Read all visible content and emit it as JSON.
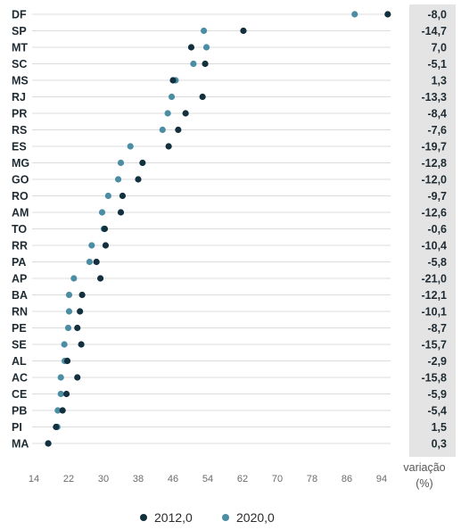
{
  "chart_data": {
    "type": "scatter",
    "style": "dot-plot",
    "categories": [
      "DF",
      "SP",
      "MT",
      "SC",
      "MS",
      "RJ",
      "PR",
      "RS",
      "ES",
      "MG",
      "GO",
      "RO",
      "AM",
      "TO",
      "RR",
      "PA",
      "AP",
      "BA",
      "RN",
      "PE",
      "SE",
      "AL",
      "AC",
      "CE",
      "PB",
      "PI",
      "MA"
    ],
    "series": [
      {
        "name": "2012,0",
        "color": "#12303d",
        "values": [
          95.4,
          62.2,
          50.2,
          53.4,
          46.0,
          52.8,
          48.9,
          47.2,
          45.0,
          39.0,
          38.0,
          34.4,
          34.0,
          30.3,
          30.5,
          28.4,
          29.3,
          25.1,
          24.6,
          24.0,
          24.9,
          21.7,
          24.0,
          21.5,
          20.6,
          19.1,
          17.3
        ]
      },
      {
        "name": "2020,0",
        "color": "#4b8ea4",
        "values": [
          87.8,
          53.1,
          53.7,
          50.7,
          46.6,
          45.7,
          44.8,
          43.6,
          36.2,
          34.0,
          33.4,
          31.1,
          29.7,
          30.1,
          27.3,
          26.8,
          23.2,
          22.1,
          22.1,
          21.9,
          21.0,
          21.1,
          20.2,
          20.2,
          19.5,
          19.4,
          17.3
        ]
      }
    ],
    "variation_values": [
      "-8,0",
      "-14,7",
      "7,0",
      "-5,1",
      "1,3",
      "-13,3",
      "-8,4",
      "-7,6",
      "-19,7",
      "-12,8",
      "-12,0",
      "-9,7",
      "-12,6",
      "-0,6",
      "-10,4",
      "-5,8",
      "-21,0",
      "-12,1",
      "-10,1",
      "-8,7",
      "-15,7",
      "-2,9",
      "-15,8",
      "-5,9",
      "-5,4",
      "1,5",
      "0,3"
    ],
    "x_ticks": [
      "14",
      "22",
      "30",
      "38",
      "46",
      "54",
      "62",
      "70",
      "78",
      "86",
      "94"
    ],
    "xlim": [
      14,
      94
    ],
    "xlabel": "",
    "ylabel": "",
    "title": "",
    "variation_header": [
      "variação",
      "(%)"
    ],
    "legend_position": "bottom",
    "grid": "horizontal",
    "colors": {
      "grid": "#dcdcdc",
      "variation_column_bg": "#e4e4e4"
    }
  }
}
